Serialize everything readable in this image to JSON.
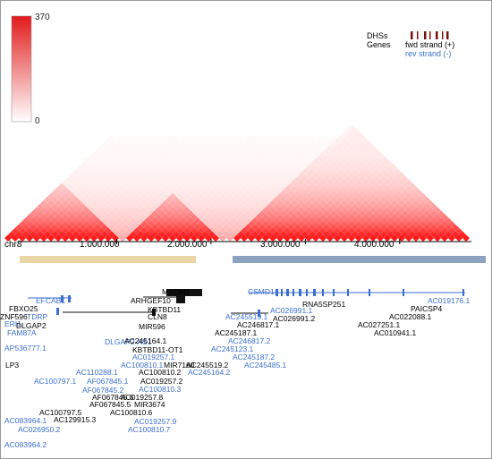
{
  "colorscale": {
    "max_label": "370",
    "min_label": "0",
    "max_color": "#e21b1b",
    "min_color": "#ffffff",
    "max": 370,
    "min": 0
  },
  "key": {
    "dhs_label": "DHSs",
    "genes_label": "Genes",
    "fwd_label": "fwd strand (+)",
    "rev_label": "rev strand (-)",
    "fwd_color": "#000000",
    "rev_color": "#3a6fd1",
    "dhs_color": "#7a1010"
  },
  "axis": {
    "chromosome": "chr8",
    "ticks": [
      {
        "label": "1.000.000",
        "position": 1000000
      },
      {
        "label": "2.000.000",
        "position": 2000000
      },
      {
        "label": "3.000.000",
        "position": 3000000
      },
      {
        "label": "4.000.000",
        "position": 4000000
      }
    ]
  },
  "domains": [
    {
      "color": "#ead6a4"
    },
    {
      "color": "#8da2c0"
    }
  ],
  "genes": [
    {
      "label": "EFCAB1",
      "strand": "rev"
    },
    {
      "label": "MYOM2",
      "strand": "fwd"
    },
    {
      "label": "CSMD1",
      "strand": "rev"
    },
    {
      "label": "AC019176.1",
      "strand": "rev"
    },
    {
      "label": "FBXO25",
      "strand": "fwd"
    },
    {
      "label": "ARHGEF10",
      "strand": "fwd"
    },
    {
      "label": "KBTBD11",
      "strand": "fwd"
    },
    {
      "label": "RNA5SP251",
      "strand": "fwd"
    },
    {
      "label": "PAICSP4",
      "strand": "fwd"
    },
    {
      "label": "ZNF596",
      "strand": "fwd"
    },
    {
      "label": "TDRP",
      "strand": "rev"
    },
    {
      "label": "CLN8",
      "strand": "fwd"
    },
    {
      "label": "AC245519.1",
      "strand": "rev"
    },
    {
      "label": "AC026991.1",
      "strand": "rev"
    },
    {
      "label": "AC022088.1",
      "strand": "fwd"
    },
    {
      "label": "ERI1",
      "strand": "rev"
    },
    {
      "label": "DLGAP2",
      "strand": "fwd"
    },
    {
      "label": "MIR596",
      "strand": "fwd"
    },
    {
      "label": "AC026991.2",
      "strand": "fwd"
    },
    {
      "label": "AC027251.1",
      "strand": "fwd"
    },
    {
      "label": "AC246817.1",
      "strand": "fwd"
    },
    {
      "label": "AC245187.1",
      "strand": "fwd"
    },
    {
      "label": "AC010941.1",
      "strand": "fwd"
    },
    {
      "label": "FAM87A",
      "strand": "rev"
    },
    {
      "label": "DLGAP2-AS1",
      "strand": "rev"
    },
    {
      "label": "AC245164.1",
      "strand": "fwd"
    },
    {
      "label": "AC246817.2",
      "strand": "rev"
    },
    {
      "label": "AP536777.1",
      "strand": "rev"
    },
    {
      "label": "KBTBD11-OT1",
      "strand": "fwd"
    },
    {
      "label": "AC245123.1",
      "strand": "rev"
    },
    {
      "label": "AC019257.1",
      "strand": "rev"
    },
    {
      "label": "AC245187.2",
      "strand": "rev"
    },
    {
      "label": "AC100810.1",
      "strand": "rev"
    },
    {
      "label": "MIR7160",
      "strand": "fwd"
    },
    {
      "label": "AC245519.2",
      "strand": "fwd"
    },
    {
      "label": "AC245485.1",
      "strand": "rev"
    },
    {
      "label": "LP3",
      "strand": "fwd"
    },
    {
      "label": "AC110288.1",
      "strand": "rev"
    },
    {
      "label": "AC100810.2",
      "strand": "fwd"
    },
    {
      "label": "AC245164.2",
      "strand": "rev"
    },
    {
      "label": "AC100797.1",
      "strand": "rev"
    },
    {
      "label": "AF067845.1",
      "strand": "rev"
    },
    {
      "label": "AC019257.2",
      "strand": "fwd"
    },
    {
      "label": "AF067845.2",
      "strand": "rev"
    },
    {
      "label": "AC100810.3",
      "strand": "rev"
    },
    {
      "label": "AC100797.5",
      "strand": "fwd"
    },
    {
      "label": "AF067845.6",
      "strand": "fwd"
    },
    {
      "label": "AC019257.8",
      "strand": "fwd"
    },
    {
      "label": "AF067845.5",
      "strand": "fwd"
    },
    {
      "label": "MIR3674",
      "strand": "fwd"
    },
    {
      "label": "AC129915.3",
      "strand": "fwd"
    },
    {
      "label": "AC100810.6",
      "strand": "fwd"
    },
    {
      "label": "AC083964.1",
      "strand": "rev"
    },
    {
      "label": "AC019257.9",
      "strand": "rev"
    },
    {
      "label": "AC026950.2",
      "strand": "rev"
    },
    {
      "label": "AC100810.7",
      "strand": "rev"
    },
    {
      "label": "AC083964.2",
      "strand": "rev"
    }
  ]
}
